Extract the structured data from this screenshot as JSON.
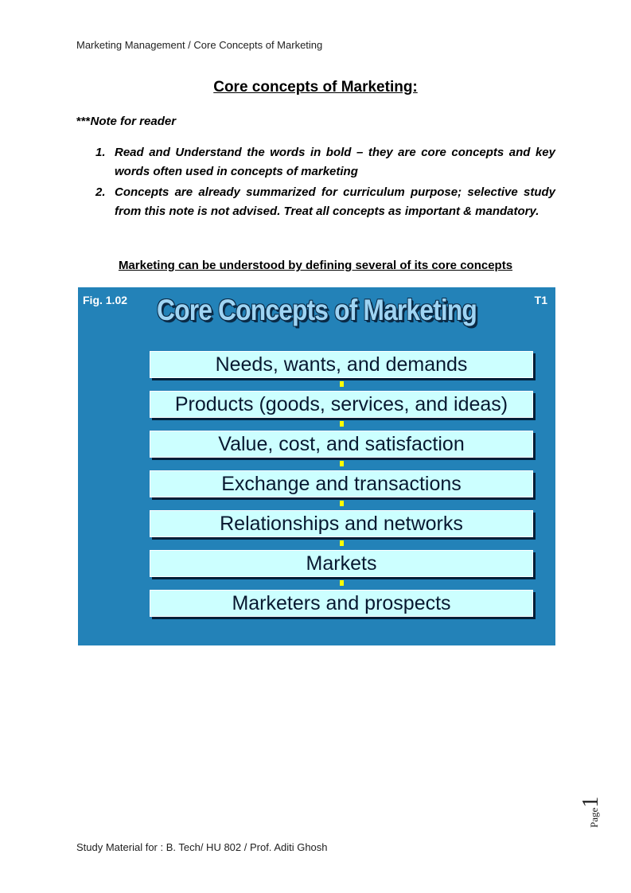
{
  "header": {
    "text": "Marketing Management / Core Concepts of Marketing"
  },
  "title": "Core concepts of Marketing:",
  "note": {
    "stars": "***",
    "label": "Note for reader",
    "items": [
      {
        "num": "1.",
        "text": "Read and Understand the words in bold – they are core concepts and key words often used  in concepts of marketing"
      },
      {
        "num": "2.",
        "text": "Concepts are already summarized for curriculum purpose; selective study from this note is not advised. Treat all concepts as important & mandatory."
      }
    ]
  },
  "subheading": "Marketing can be understood by defining several of its core concepts",
  "figure": {
    "fig_label": "Fig. 1.02",
    "slide_tag": "T1",
    "title": "Core Concepts of Marketing",
    "concepts": [
      "Needs, wants, and demands",
      "Products (goods, services, and ideas)",
      "Value, cost, and satisfaction",
      "Exchange and transactions",
      "Relationships and networks",
      "Markets",
      "Marketers and prospects"
    ],
    "colors": {
      "background": "#2382b8",
      "box": "#ccffff",
      "connector": "#ffff00",
      "title": "#9fd4f3"
    }
  },
  "page": {
    "label": "Page",
    "number": "1"
  },
  "footer": {
    "text": "Study Material  for  : B. Tech/ HU 802 / Prof. Aditi Ghosh"
  }
}
